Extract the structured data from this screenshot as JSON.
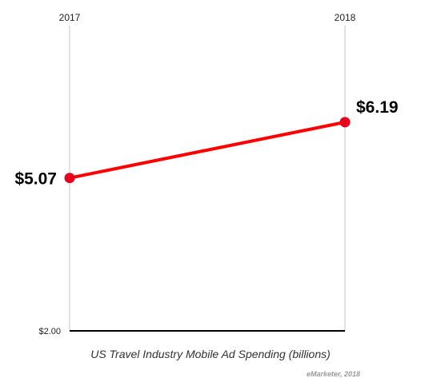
{
  "chart_data": {
    "type": "line",
    "x": [
      "2017",
      "2018"
    ],
    "series": [
      {
        "values": [
          5.07,
          6.19
        ],
        "labels": [
          "$5.07",
          "$6.19"
        ],
        "color": "#ff0000"
      }
    ],
    "ylim": [
      2.0,
      8.13
    ],
    "y_tick_label": "$2.00",
    "title": "US Travel Industry Mobile Ad Spending (billions)",
    "source": "eMarketer, 2018",
    "grid": "vertical",
    "point_color": "#e8001c"
  }
}
